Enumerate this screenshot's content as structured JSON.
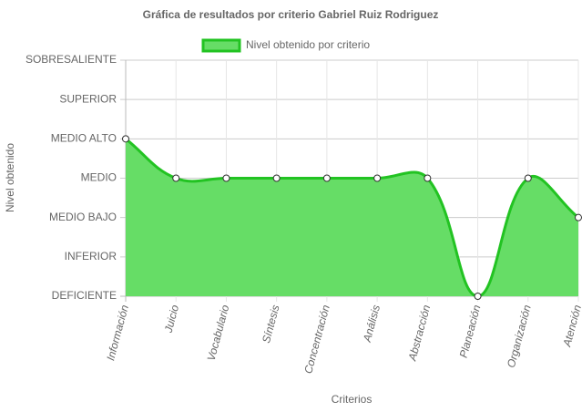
{
  "chart_data": {
    "type": "area",
    "title": "Gráfica de resultados por criterio Gabriel Ruiz Rodriguez",
    "x_label": "Criterios",
    "y_label": "Nivel obtenido",
    "categories": [
      "Información",
      "Juicio",
      "Vocabulario",
      "Síntesis",
      "Concentración",
      "Análisis",
      "Abstracción",
      "Planeación",
      "Organización",
      "Atención"
    ],
    "series": [
      {
        "name": "Nivel obtenido por criterio",
        "color": "#22c322",
        "fill": "#66dd66",
        "values": [
          4,
          3,
          3,
          3,
          3,
          3,
          3,
          0,
          3,
          2
        ]
      }
    ],
    "ylim": [
      0,
      6
    ],
    "yticks": [
      {
        "value": 0,
        "label": "DEFICIENTE"
      },
      {
        "value": 1,
        "label": "INFERIOR"
      },
      {
        "value": 2,
        "label": "MEDIO BAJO"
      },
      {
        "value": 3,
        "label": "MEDIO"
      },
      {
        "value": 4,
        "label": "MEDIO ALTO"
      },
      {
        "value": 5,
        "label": "SUPERIOR"
      },
      {
        "value": 6,
        "label": "SOBRESALIENTE"
      }
    ],
    "grid": true,
    "legend": "top"
  }
}
